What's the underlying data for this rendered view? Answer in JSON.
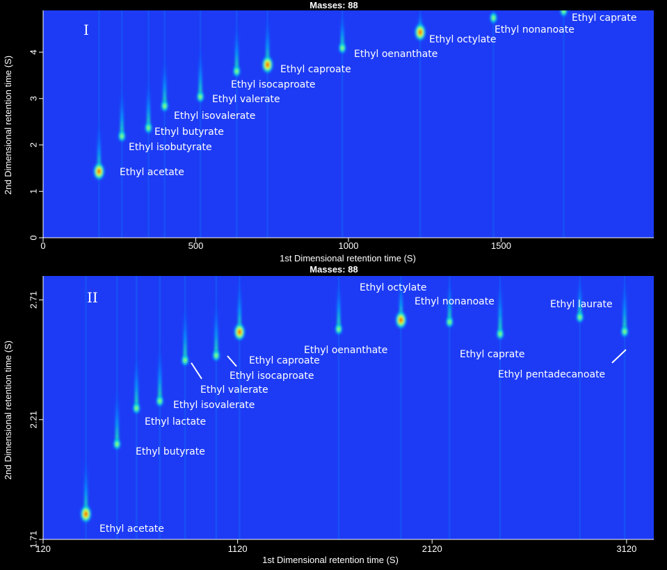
{
  "chart_data": [
    {
      "type": "heatmap",
      "panel": "I",
      "title": "Masses:  88",
      "xlabel": "1st Dimensional retention time (S)",
      "ylabel": "2nd Dimensional retention time (S)",
      "xlim": [
        0,
        2000
      ],
      "ylim": [
        0,
        4.9
      ],
      "xticks": [
        0,
        500,
        1000,
        1500
      ],
      "yticks": [
        0,
        1,
        2,
        3,
        4
      ],
      "grid": false,
      "colormap": [
        "#1a33ff",
        "#00b4ff",
        "#22ffa8",
        "#f2ff00",
        "#ff6a00",
        "#d40000"
      ],
      "background": "#1d3bf5",
      "peaks": [
        {
          "label": "Ethyl acetate",
          "x": 183,
          "y": 1.45
        },
        {
          "label": "Ethyl isobutyrate",
          "x": 258,
          "y": 2.2
        },
        {
          "label": "Ethyl butyrate",
          "x": 345,
          "y": 2.38
        },
        {
          "label": "Ethyl isovalerate",
          "x": 398,
          "y": 2.85
        },
        {
          "label": "Ethyl valerate",
          "x": 515,
          "y": 3.05
        },
        {
          "label": "Ethyl isocaproate",
          "x": 634,
          "y": 3.6
        },
        {
          "label": "Ethyl caproate",
          "x": 735,
          "y": 3.75
        },
        {
          "label": "Ethyl oenanthate",
          "x": 980,
          "y": 4.1
        },
        {
          "label": "Ethyl octylate",
          "x": 1235,
          "y": 4.45
        },
        {
          "label": "Ethyl nonanoate",
          "x": 1475,
          "y": 4.75
        },
        {
          "label": "Ethyl caprate",
          "x": 1705,
          "y": 4.9
        }
      ]
    },
    {
      "type": "heatmap",
      "panel": "II",
      "title": "Masses:  88",
      "xlabel": "1st Dimensional retention time (S)",
      "ylabel": "2nd Dimensional retention time (S)",
      "xlim": [
        120,
        3260
      ],
      "ylim": [
        1.71,
        2.81
      ],
      "xticks": [
        120,
        1120,
        2120,
        3120
      ],
      "yticks": [
        1.71,
        2.21,
        2.71
      ],
      "grid": false,
      "colormap": [
        "#1a33ff",
        "#00b4ff",
        "#22ffa8",
        "#f2ff00",
        "#ff6a00",
        "#d40000"
      ],
      "background": "#1d3bf5",
      "peaks": [
        {
          "label": "Ethyl acetate",
          "x": 340,
          "y": 1.82
        },
        {
          "label": "Ethyl butyrate",
          "x": 500,
          "y": 2.11
        },
        {
          "label": "Ethyl lactate",
          "x": 600,
          "y": 2.26
        },
        {
          "label": "Ethyl isovalerate",
          "x": 720,
          "y": 2.29
        },
        {
          "label": "Ethyl valerate",
          "x": 850,
          "y": 2.46
        },
        {
          "label": "Ethyl isocaproate",
          "x": 1010,
          "y": 2.48
        },
        {
          "label": "Ethyl caproate",
          "x": 1130,
          "y": 2.58
        },
        {
          "label": "Ethyl oenanthate",
          "x": 1640,
          "y": 2.59
        },
        {
          "label": "Ethyl octylate",
          "x": 1960,
          "y": 2.63
        },
        {
          "label": "Ethyl nonanoate",
          "x": 2210,
          "y": 2.62
        },
        {
          "label": "Ethyl caprate",
          "x": 2470,
          "y": 2.57
        },
        {
          "label": "Ethyl laurate",
          "x": 2880,
          "y": 2.64
        },
        {
          "label": "Ethyl pentadecanoate",
          "x": 3110,
          "y": 2.58
        }
      ]
    }
  ]
}
